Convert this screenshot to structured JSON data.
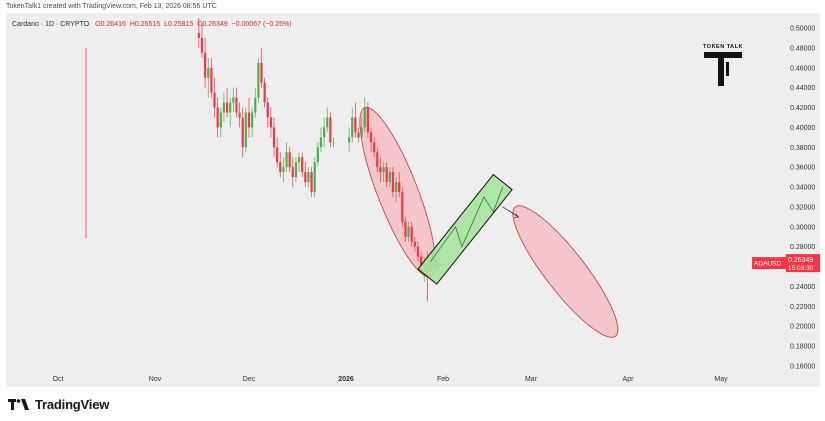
{
  "header": {
    "attribution": "TokenTalk1 created with TradingView.com, Feb 13, 2026 08:56 UTC"
  },
  "legend": {
    "symbol": "Cardano · 1D · CRYPTO",
    "open": "O0.26416",
    "high": "H0.26515",
    "low": "L0.25815",
    "close": "C0.26349",
    "change": "−0.00067 (−0.25%)"
  },
  "price_tag": {
    "ticker": "ADAUSD",
    "price": "0.26349",
    "countdown": "15:03:30",
    "color": "#f23645"
  },
  "watermark": {
    "text": "TOKEN TALK"
  },
  "footer": {
    "brand": "TradingView"
  },
  "colors": {
    "up": "#4caf50",
    "down": "#f23645",
    "bearish_zone": "#f5b7bf",
    "bullish_zone": "#a8e3a0",
    "background": "#eeeeee"
  },
  "chart_data": {
    "type": "candlestick",
    "title": "",
    "xlabel": "",
    "ylabel": "",
    "y_tick_labels": [
      "0.50000",
      "0.48000",
      "0.46000",
      "0.44000",
      "0.42000",
      "0.40000",
      "0.38000",
      "0.36000",
      "0.34000",
      "0.32000",
      "0.30000",
      "0.28000",
      "0.24000",
      "0.22000",
      "0.20000",
      "0.18000",
      "0.16000"
    ],
    "x_tick_labels": [
      "Oct",
      "Nov",
      "Dec",
      "2026",
      "Feb",
      "Mar",
      "Apr",
      "May"
    ],
    "ylim": [
      0.15,
      0.51
    ],
    "grid": false,
    "candles": [
      {
        "date": "2025-11-15",
        "open": 0.495,
        "high": 0.51,
        "low": 0.48,
        "close": 0.49
      },
      {
        "date": "2025-11-16",
        "open": 0.49,
        "high": 0.505,
        "low": 0.47,
        "close": 0.475
      },
      {
        "date": "2025-11-17",
        "open": 0.475,
        "high": 0.49,
        "low": 0.44,
        "close": 0.45
      },
      {
        "date": "2025-11-18",
        "open": 0.45,
        "high": 0.47,
        "low": 0.43,
        "close": 0.46
      },
      {
        "date": "2025-11-19",
        "open": 0.46,
        "high": 0.47,
        "low": 0.43,
        "close": 0.435
      },
      {
        "date": "2025-11-20",
        "open": 0.435,
        "high": 0.45,
        "low": 0.41,
        "close": 0.42
      },
      {
        "date": "2025-11-21",
        "open": 0.42,
        "high": 0.43,
        "low": 0.39,
        "close": 0.4
      },
      {
        "date": "2025-11-22",
        "open": 0.4,
        "high": 0.42,
        "low": 0.39,
        "close": 0.415
      },
      {
        "date": "2025-11-23",
        "open": 0.415,
        "high": 0.435,
        "low": 0.405,
        "close": 0.425
      },
      {
        "date": "2025-11-24",
        "open": 0.425,
        "high": 0.44,
        "low": 0.41,
        "close": 0.415
      },
      {
        "date": "2025-11-25",
        "open": 0.415,
        "high": 0.43,
        "low": 0.4,
        "close": 0.425
      },
      {
        "date": "2025-11-26",
        "open": 0.425,
        "high": 0.44,
        "low": 0.415,
        "close": 0.43
      },
      {
        "date": "2025-11-27",
        "open": 0.43,
        "high": 0.44,
        "low": 0.41,
        "close": 0.415
      },
      {
        "date": "2025-11-28",
        "open": 0.415,
        "high": 0.425,
        "low": 0.4,
        "close": 0.41
      },
      {
        "date": "2025-11-29",
        "open": 0.41,
        "high": 0.42,
        "low": 0.37,
        "close": 0.38
      },
      {
        "date": "2025-11-30",
        "open": 0.38,
        "high": 0.42,
        "low": 0.375,
        "close": 0.415
      },
      {
        "date": "2025-12-01",
        "open": 0.415,
        "high": 0.43,
        "low": 0.39,
        "close": 0.4
      },
      {
        "date": "2025-12-02",
        "open": 0.4,
        "high": 0.42,
        "low": 0.39,
        "close": 0.415
      },
      {
        "date": "2025-12-03",
        "open": 0.415,
        "high": 0.44,
        "low": 0.41,
        "close": 0.43
      },
      {
        "date": "2025-12-04",
        "open": 0.43,
        "high": 0.47,
        "low": 0.425,
        "close": 0.465
      },
      {
        "date": "2025-12-05",
        "open": 0.465,
        "high": 0.48,
        "low": 0.44,
        "close": 0.445
      },
      {
        "date": "2025-12-06",
        "open": 0.445,
        "high": 0.45,
        "low": 0.42,
        "close": 0.425
      },
      {
        "date": "2025-12-07",
        "open": 0.425,
        "high": 0.43,
        "low": 0.4,
        "close": 0.41
      },
      {
        "date": "2025-12-08",
        "open": 0.41,
        "high": 0.42,
        "low": 0.39,
        "close": 0.4
      },
      {
        "date": "2025-12-09",
        "open": 0.4,
        "high": 0.41,
        "low": 0.37,
        "close": 0.38
      },
      {
        "date": "2025-12-10",
        "open": 0.38,
        "high": 0.39,
        "low": 0.36,
        "close": 0.365
      },
      {
        "date": "2025-12-11",
        "open": 0.365,
        "high": 0.375,
        "low": 0.35,
        "close": 0.355
      },
      {
        "date": "2025-12-12",
        "open": 0.355,
        "high": 0.37,
        "low": 0.345,
        "close": 0.36
      },
      {
        "date": "2025-12-13",
        "open": 0.36,
        "high": 0.385,
        "low": 0.355,
        "close": 0.375
      },
      {
        "date": "2025-12-14",
        "open": 0.375,
        "high": 0.38,
        "low": 0.355,
        "close": 0.36
      },
      {
        "date": "2025-12-15",
        "open": 0.36,
        "high": 0.37,
        "low": 0.34,
        "close": 0.35
      },
      {
        "date": "2025-12-16",
        "open": 0.35,
        "high": 0.37,
        "low": 0.345,
        "close": 0.365
      },
      {
        "date": "2025-12-17",
        "open": 0.365,
        "high": 0.375,
        "low": 0.355,
        "close": 0.37
      },
      {
        "date": "2025-12-18",
        "open": 0.37,
        "high": 0.375,
        "low": 0.35,
        "close": 0.355
      },
      {
        "date": "2025-12-19",
        "open": 0.355,
        "high": 0.365,
        "low": 0.34,
        "close": 0.345
      },
      {
        "date": "2025-12-20",
        "open": 0.345,
        "high": 0.36,
        "low": 0.34,
        "close": 0.355
      },
      {
        "date": "2025-12-21",
        "open": 0.355,
        "high": 0.36,
        "low": 0.33,
        "close": 0.335
      },
      {
        "date": "2025-12-22",
        "open": 0.335,
        "high": 0.37,
        "low": 0.33,
        "close": 0.365
      },
      {
        "date": "2025-12-23",
        "open": 0.365,
        "high": 0.385,
        "low": 0.36,
        "close": 0.38
      },
      {
        "date": "2025-12-24",
        "open": 0.38,
        "high": 0.4,
        "low": 0.375,
        "close": 0.39
      },
      {
        "date": "2025-12-25",
        "open": 0.39,
        "high": 0.41,
        "low": 0.38,
        "close": 0.4
      },
      {
        "date": "2025-12-26",
        "open": 0.4,
        "high": 0.42,
        "low": 0.395,
        "close": 0.41
      },
      {
        "date": "2025-12-27",
        "open": 0.41,
        "high": 0.415,
        "low": 0.38,
        "close": 0.385
      },
      {
        "date": "2025-12-28",
        "open": 0.385,
        "high": 0.39,
        "low": 0.38,
        "close": 0.385
      },
      {
        "date": "2026-01-02",
        "open": 0.385,
        "high": 0.4,
        "low": 0.375,
        "close": 0.39
      },
      {
        "date": "2026-01-03",
        "open": 0.39,
        "high": 0.42,
        "low": 0.385,
        "close": 0.41
      },
      {
        "date": "2026-01-04",
        "open": 0.41,
        "high": 0.425,
        "low": 0.39,
        "close": 0.395
      },
      {
        "date": "2026-01-05",
        "open": 0.395,
        "high": 0.4,
        "low": 0.385,
        "close": 0.39
      },
      {
        "date": "2026-01-06",
        "open": 0.39,
        "high": 0.41,
        "low": 0.385,
        "close": 0.4
      },
      {
        "date": "2026-01-07",
        "open": 0.4,
        "high": 0.43,
        "low": 0.395,
        "close": 0.42
      },
      {
        "date": "2026-01-08",
        "open": 0.42,
        "high": 0.425,
        "low": 0.39,
        "close": 0.395
      },
      {
        "date": "2026-01-09",
        "open": 0.395,
        "high": 0.4,
        "low": 0.375,
        "close": 0.385
      },
      {
        "date": "2026-01-10",
        "open": 0.385,
        "high": 0.39,
        "low": 0.37,
        "close": 0.375
      },
      {
        "date": "2026-01-11",
        "open": 0.375,
        "high": 0.38,
        "low": 0.355,
        "close": 0.36
      },
      {
        "date": "2026-01-12",
        "open": 0.36,
        "high": 0.37,
        "low": 0.345,
        "close": 0.355
      },
      {
        "date": "2026-01-13",
        "open": 0.355,
        "high": 0.365,
        "low": 0.345,
        "close": 0.36
      },
      {
        "date": "2026-01-14",
        "open": 0.36,
        "high": 0.365,
        "low": 0.34,
        "close": 0.345
      },
      {
        "date": "2026-01-15",
        "open": 0.345,
        "high": 0.36,
        "low": 0.34,
        "close": 0.355
      },
      {
        "date": "2026-01-16",
        "open": 0.355,
        "high": 0.36,
        "low": 0.33,
        "close": 0.335
      },
      {
        "date": "2026-01-17",
        "open": 0.335,
        "high": 0.35,
        "low": 0.325,
        "close": 0.345
      },
      {
        "date": "2026-01-18",
        "open": 0.345,
        "high": 0.355,
        "low": 0.33,
        "close": 0.335
      },
      {
        "date": "2026-01-19",
        "open": 0.335,
        "high": 0.34,
        "low": 0.3,
        "close": 0.305
      },
      {
        "date": "2026-01-20",
        "open": 0.305,
        "high": 0.31,
        "low": 0.285,
        "close": 0.29
      },
      {
        "date": "2026-01-21",
        "open": 0.29,
        "high": 0.305,
        "low": 0.285,
        "close": 0.3
      },
      {
        "date": "2026-01-22",
        "open": 0.3,
        "high": 0.305,
        "low": 0.28,
        "close": 0.285
      },
      {
        "date": "2026-01-23",
        "open": 0.285,
        "high": 0.29,
        "low": 0.275,
        "close": 0.28
      },
      {
        "date": "2026-01-24",
        "open": 0.28,
        "high": 0.285,
        "low": 0.265,
        "close": 0.27
      },
      {
        "date": "2026-01-25",
        "open": 0.27,
        "high": 0.275,
        "low": 0.255,
        "close": 0.26
      },
      {
        "date": "2026-01-26",
        "open": 0.26,
        "high": 0.27,
        "low": 0.245,
        "close": 0.265
      },
      {
        "date": "2026-01-27",
        "open": 0.265,
        "high": 0.275,
        "low": 0.225,
        "close": 0.255
      },
      {
        "date": "2026-01-28",
        "open": 0.255,
        "high": 0.275,
        "low": 0.25,
        "close": 0.27
      },
      {
        "date": "2026-01-29",
        "open": 0.27,
        "high": 0.275,
        "low": 0.26,
        "close": 0.265
      },
      {
        "date": "2026-01-30",
        "open": 0.265,
        "high": 0.27,
        "low": 0.255,
        "close": 0.26
      },
      {
        "date": "2026-01-31",
        "open": 0.26,
        "high": 0.27,
        "low": 0.255,
        "close": 0.262
      },
      {
        "date": "2026-02-01",
        "open": 0.262,
        "high": 0.265,
        "low": 0.258,
        "close": 0.263
      }
    ],
    "annotations": [
      {
        "shape": "ellipse",
        "color": "bearish",
        "from_date": "2026-01-07",
        "to_date": "2026-01-28",
        "y_top": 0.42,
        "y_bottom": 0.25
      },
      {
        "shape": "rectangle",
        "color": "bullish",
        "from_date": "2026-01-27",
        "to_date": "2026-02-20",
        "y_top": 0.345,
        "y_bottom": 0.25
      },
      {
        "shape": "path",
        "color": "bullish",
        "points": [
          [
            "2026-01-28",
            0.265
          ],
          [
            "2026-02-05",
            0.3
          ],
          [
            "2026-02-07",
            0.28
          ],
          [
            "2026-02-14",
            0.33
          ],
          [
            "2026-02-17",
            0.315
          ],
          [
            "2026-02-20",
            0.34
          ]
        ]
      },
      {
        "shape": "arrow",
        "points": [
          [
            "2026-02-20",
            0.32
          ],
          [
            "2026-02-25",
            0.31
          ]
        ]
      },
      {
        "shape": "ellipse",
        "color": "bearish",
        "from_date": "2026-02-24",
        "to_date": "2026-03-28",
        "y_top": 0.32,
        "y_bottom": 0.19
      }
    ]
  }
}
